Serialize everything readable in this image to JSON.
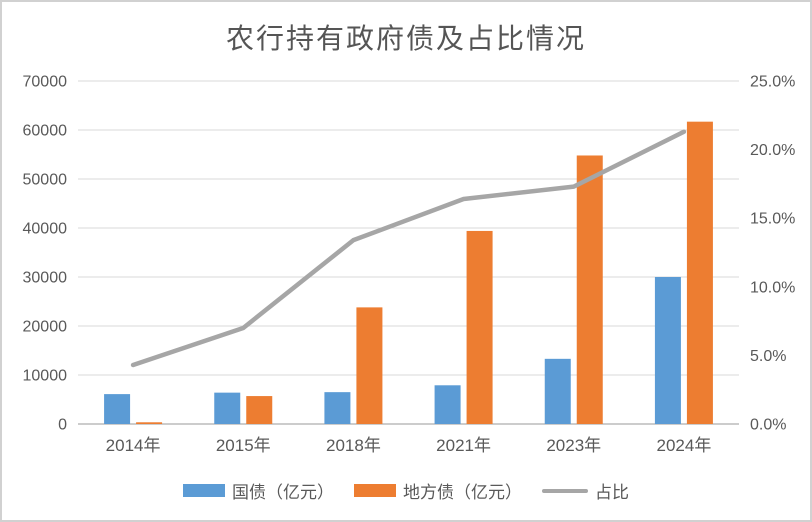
{
  "chart_data": {
    "type": "bar",
    "title": "农行持有政府债及占比情况",
    "categories": [
      "2014年",
      "2015年",
      "2018年",
      "2021年",
      "2023年",
      "2024年"
    ],
    "series": [
      {
        "name": "国债（亿元）",
        "kind": "bar",
        "axis": "left",
        "color": "#5B9BD5",
        "values": [
          6100,
          6400,
          6500,
          7900,
          13300,
          30000
        ]
      },
      {
        "name": "地方债（亿元）",
        "kind": "bar",
        "axis": "left",
        "color": "#ED7D31",
        "values": [
          350,
          5700,
          23800,
          39400,
          54800,
          61700
        ]
      },
      {
        "name": "占比",
        "kind": "line",
        "axis": "right",
        "color": "#A6A6A6",
        "values": [
          4.3,
          7.0,
          13.4,
          16.4,
          17.3,
          21.3
        ]
      }
    ],
    "left_axis": {
      "min": 0,
      "max": 70000,
      "tick_labels": [
        "0",
        "10000",
        "20000",
        "30000",
        "40000",
        "50000",
        "60000",
        "70000"
      ],
      "tick_values": [
        0,
        10000,
        20000,
        30000,
        40000,
        50000,
        60000,
        70000
      ]
    },
    "right_axis": {
      "min": 0,
      "max": 25,
      "tick_labels": [
        "0.0%",
        "5.0%",
        "10.0%",
        "15.0%",
        "20.0%",
        "25.0%"
      ],
      "tick_values": [
        0,
        5,
        10,
        15,
        20,
        25
      ]
    },
    "grid": true,
    "legend_position": "bottom",
    "colors": {
      "gridline": "#D9D9D9",
      "baseline": "#CCCCCC",
      "axis_text": "#595959",
      "title_text": "#555555",
      "background": "#FFFFFF"
    }
  }
}
